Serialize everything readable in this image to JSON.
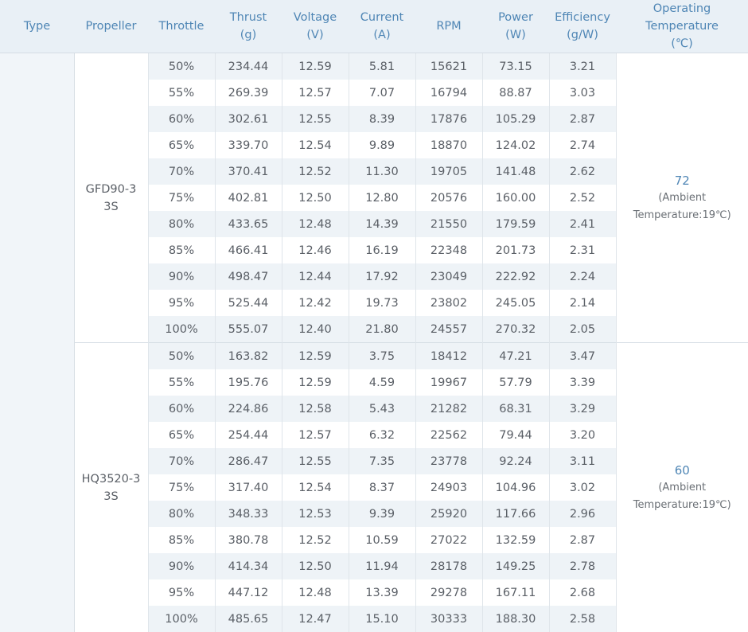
{
  "headers": {
    "type": "Type",
    "propeller": "Propeller",
    "throttle": "Throttle",
    "thrust": [
      "Thrust",
      "(g)"
    ],
    "voltage": [
      "Voltage",
      "(V)"
    ],
    "current": [
      "Current",
      "(A)"
    ],
    "rpm": "RPM",
    "power": [
      "Power",
      "(W)"
    ],
    "efficiency": [
      "Efficiency",
      "(g/W)"
    ],
    "temperature": [
      "Operating",
      "Temperature",
      "(℃)"
    ]
  },
  "groups": [
    {
      "propeller": [
        "GFD90-3",
        "3S"
      ],
      "temperature": "72",
      "temperature_note": [
        "(Ambient",
        "Temperature:19℃)"
      ],
      "rows": [
        [
          "50%",
          "234.44",
          "12.59",
          "5.81",
          "15621",
          "73.15",
          "3.21"
        ],
        [
          "55%",
          "269.39",
          "12.57",
          "7.07",
          "16794",
          "88.87",
          "3.03"
        ],
        [
          "60%",
          "302.61",
          "12.55",
          "8.39",
          "17876",
          "105.29",
          "2.87"
        ],
        [
          "65%",
          "339.70",
          "12.54",
          "9.89",
          "18870",
          "124.02",
          "2.74"
        ],
        [
          "70%",
          "370.41",
          "12.52",
          "11.30",
          "19705",
          "141.48",
          "2.62"
        ],
        [
          "75%",
          "402.81",
          "12.50",
          "12.80",
          "20576",
          "160.00",
          "2.52"
        ],
        [
          "80%",
          "433.65",
          "12.48",
          "14.39",
          "21550",
          "179.59",
          "2.41"
        ],
        [
          "85%",
          "466.41",
          "12.46",
          "16.19",
          "22348",
          "201.73",
          "2.31"
        ],
        [
          "90%",
          "498.47",
          "12.44",
          "17.92",
          "23049",
          "222.92",
          "2.24"
        ],
        [
          "95%",
          "525.44",
          "12.42",
          "19.73",
          "23802",
          "245.05",
          "2.14"
        ],
        [
          "100%",
          "555.07",
          "12.40",
          "21.80",
          "24557",
          "270.32",
          "2.05"
        ]
      ]
    },
    {
      "propeller": [
        "HQ3520-3",
        "3S"
      ],
      "temperature": "60",
      "temperature_note": [
        "(Ambient",
        "Temperature:19℃)"
      ],
      "rows": [
        [
          "50%",
          "163.82",
          "12.59",
          "3.75",
          "18412",
          "47.21",
          "3.47"
        ],
        [
          "55%",
          "195.76",
          "12.59",
          "4.59",
          "19967",
          "57.79",
          "3.39"
        ],
        [
          "60%",
          "224.86",
          "12.58",
          "5.43",
          "21282",
          "68.31",
          "3.29"
        ],
        [
          "65%",
          "254.44",
          "12.57",
          "6.32",
          "22562",
          "79.44",
          "3.20"
        ],
        [
          "70%",
          "286.47",
          "12.55",
          "7.35",
          "23778",
          "92.24",
          "3.11"
        ],
        [
          "75%",
          "317.40",
          "12.54",
          "8.37",
          "24903",
          "104.96",
          "3.02"
        ],
        [
          "80%",
          "348.33",
          "12.53",
          "9.39",
          "25920",
          "117.66",
          "2.96"
        ],
        [
          "85%",
          "380.78",
          "12.52",
          "10.59",
          "27022",
          "132.59",
          "2.87"
        ],
        [
          "90%",
          "414.34",
          "12.50",
          "11.94",
          "28178",
          "149.25",
          "2.78"
        ],
        [
          "95%",
          "447.12",
          "12.48",
          "13.39",
          "29278",
          "167.11",
          "2.68"
        ],
        [
          "100%",
          "485.65",
          "12.47",
          "15.10",
          "30333",
          "188.30",
          "2.58"
        ]
      ]
    }
  ]
}
